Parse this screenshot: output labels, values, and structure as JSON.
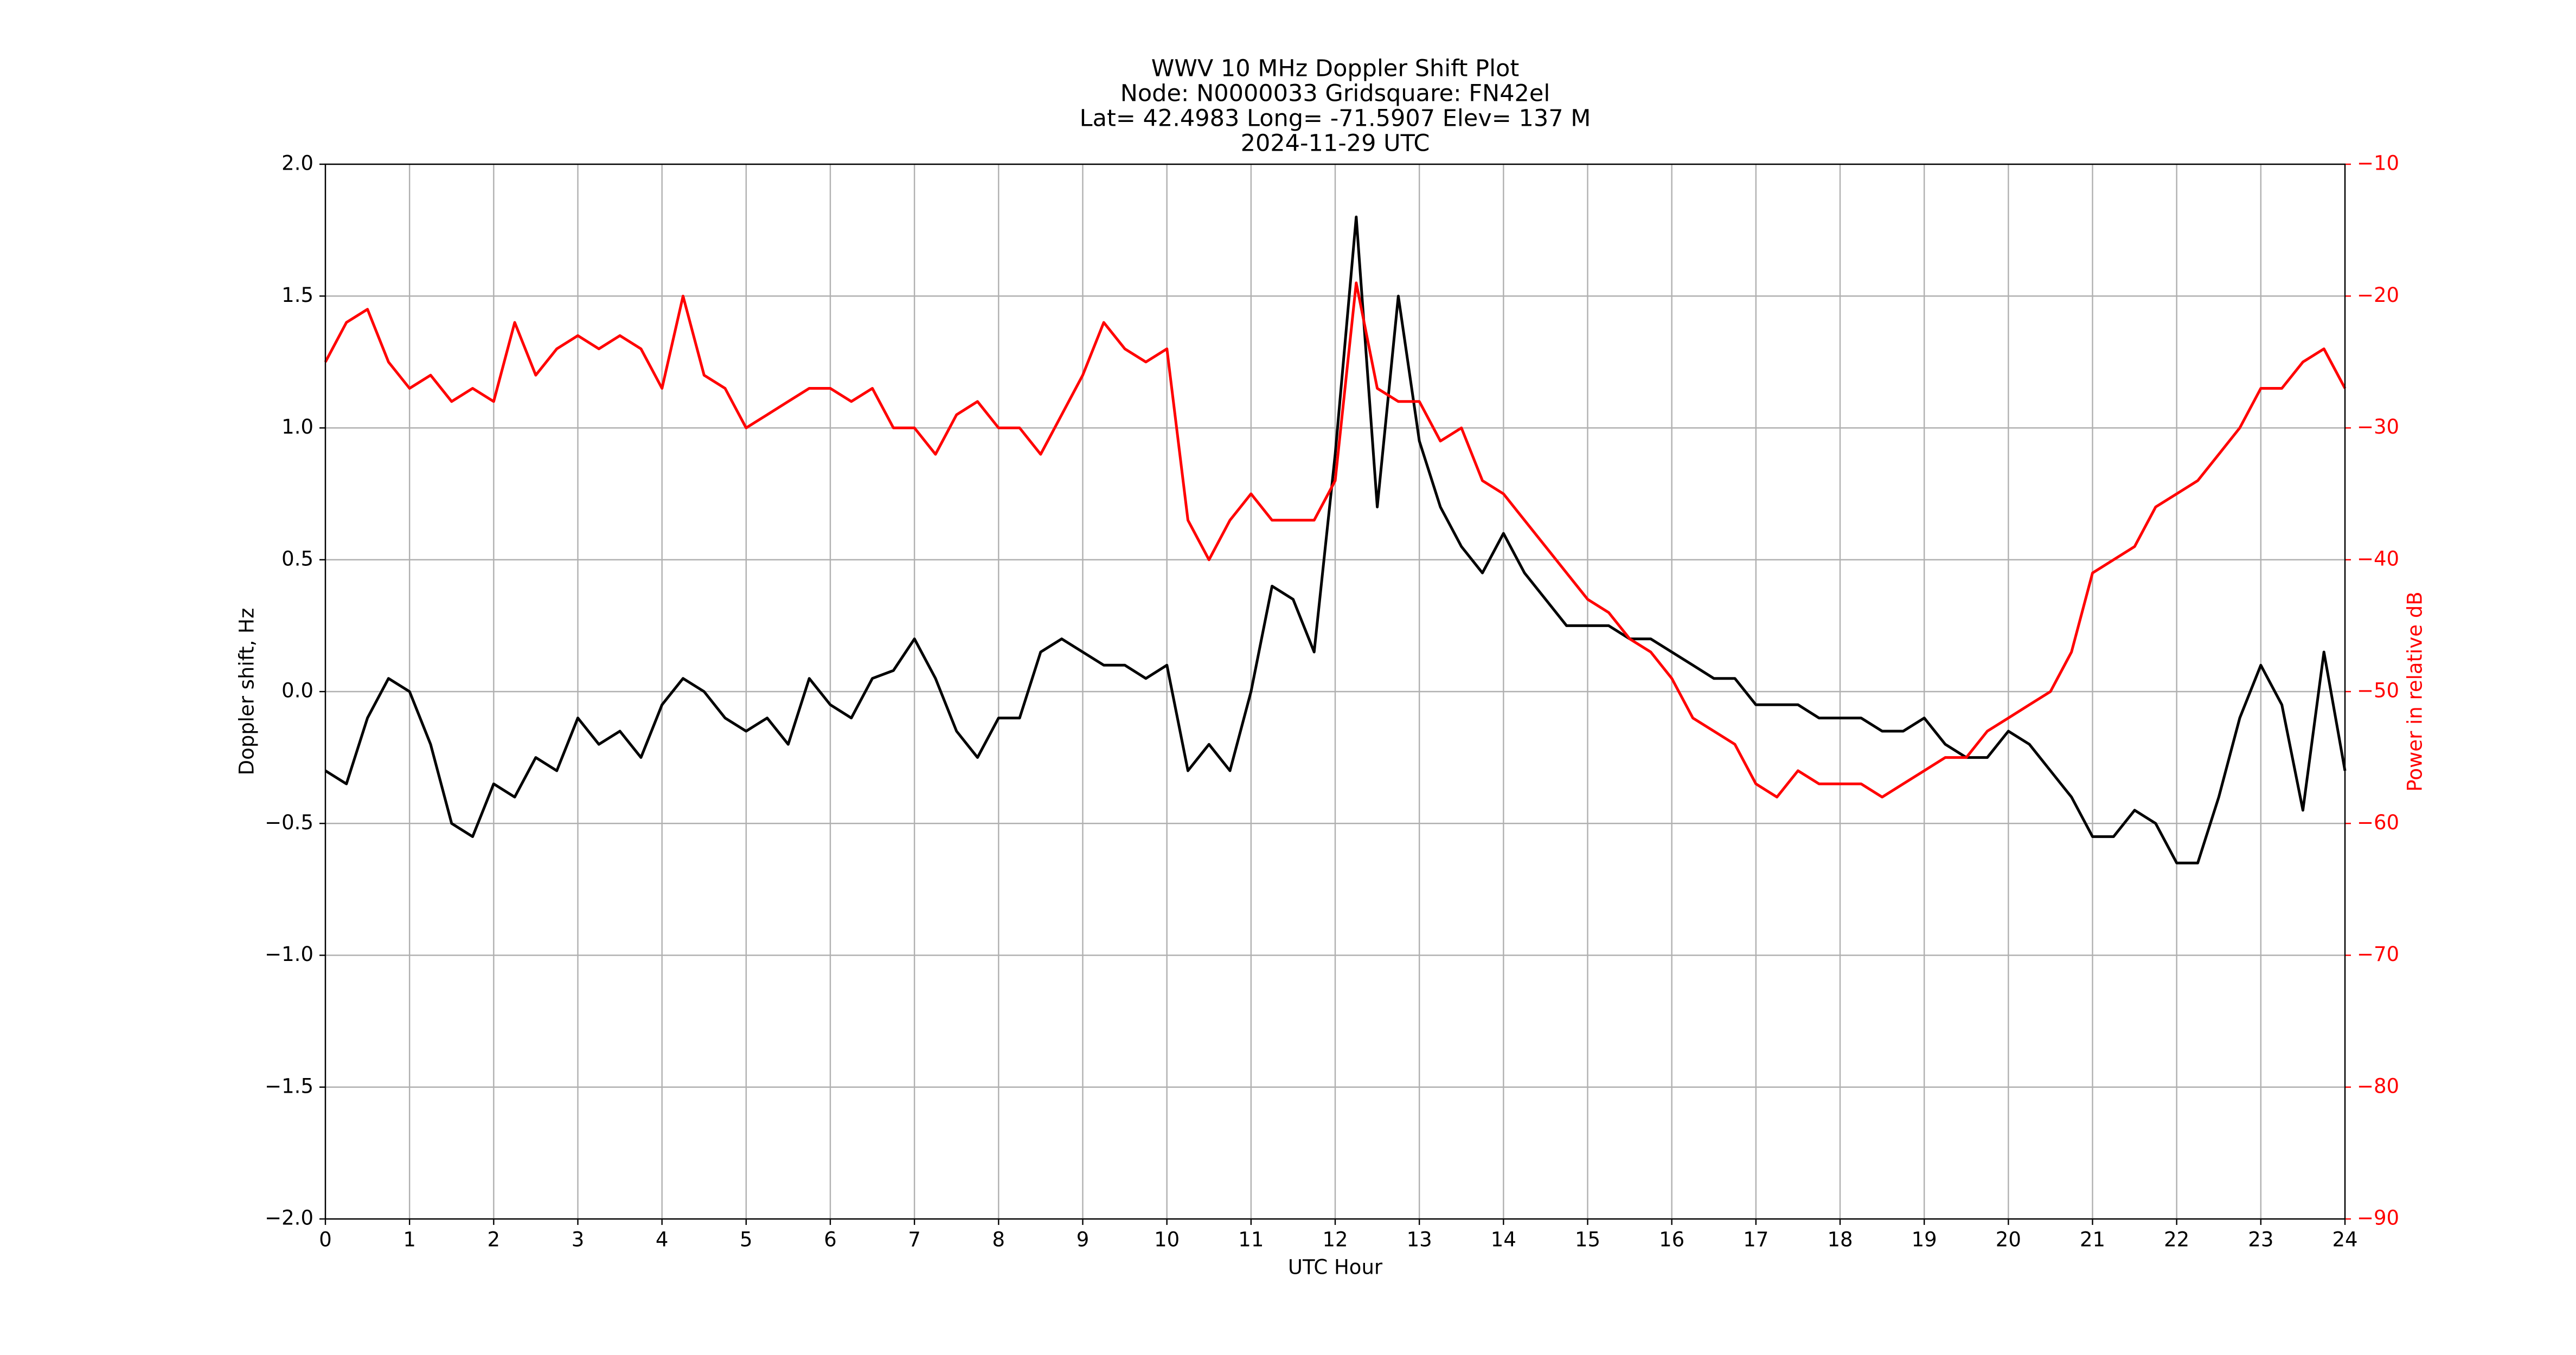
{
  "chart_data": {
    "type": "line",
    "title": "WWV 10 MHz Doppler Shift Plot",
    "subtitle": [
      "Node:  N0000033     Gridsquare:  FN42el",
      "Lat= 42.4983    Long= -71.5907    Elev= 137 M",
      "2024-11-29  UTC"
    ],
    "xlabel": "UTC Hour",
    "ylabel": "Doppler shift, Hz",
    "y2label": "Power in relative dB",
    "x": [
      0,
      0.25,
      0.5,
      0.75,
      1,
      1.25,
      1.5,
      1.75,
      2,
      2.25,
      2.5,
      2.75,
      3,
      3.25,
      3.5,
      3.75,
      4,
      4.25,
      4.5,
      4.75,
      5,
      5.25,
      5.5,
      5.75,
      6,
      6.25,
      6.5,
      6.75,
      7,
      7.25,
      7.5,
      7.75,
      8,
      8.25,
      8.5,
      8.75,
      9,
      9.25,
      9.5,
      9.75,
      10,
      10.25,
      10.5,
      10.75,
      11,
      11.25,
      11.5,
      11.75,
      12,
      12.25,
      12.5,
      12.75,
      13,
      13.25,
      13.5,
      13.75,
      14,
      14.25,
      14.5,
      14.75,
      15,
      15.25,
      15.5,
      15.75,
      16,
      16.25,
      16.5,
      16.75,
      17,
      17.25,
      17.5,
      17.75,
      18,
      18.25,
      18.5,
      18.75,
      19,
      19.25,
      19.5,
      19.75,
      20,
      20.25,
      20.5,
      20.75,
      21,
      21.25,
      21.5,
      21.75,
      22,
      22.25,
      22.5,
      22.75,
      23,
      23.25,
      23.5,
      23.75,
      24
    ],
    "series": [
      {
        "color": "#000000",
        "values": [
          -0.3,
          -0.35,
          -0.1,
          0.05,
          0,
          -0.2,
          -0.5,
          -0.55,
          -0.35,
          -0.4,
          -0.25,
          -0.3,
          -0.1,
          -0.2,
          -0.15,
          -0.25,
          -0.05,
          0.05,
          0,
          -0.1,
          -0.15,
          -0.1,
          -0.2,
          0.05,
          -0.05,
          -0.1,
          0.05,
          0.08,
          0.2,
          0.05,
          -0.15,
          -0.25,
          -0.1,
          -0.1,
          0.15,
          0.2,
          0.15,
          0.1,
          0.1,
          0.05,
          0.1,
          -0.3,
          -0.2,
          -0.3,
          0,
          0.4,
          0.35,
          0.15,
          0.9,
          1.8,
          0.7,
          1.5,
          0.95,
          0.7,
          0.55,
          0.45,
          0.6,
          0.45,
          0.35,
          0.25,
          0.25,
          0.25,
          0.2,
          0.2,
          0.15,
          0.1,
          0.05,
          0.05,
          -0.05,
          -0.05,
          -0.05,
          -0.1,
          -0.1,
          -0.1,
          -0.15,
          -0.15,
          -0.1,
          -0.2,
          -0.25,
          -0.25,
          -0.15,
          -0.2,
          -0.3,
          -0.4,
          -0.55,
          -0.55,
          -0.45,
          -0.5,
          -0.65,
          -0.65,
          -0.4,
          -0.1,
          0.1,
          -0.05,
          -0.45,
          0.15,
          -0.3
        ]
      },
      {
        "color": "#ff0000",
        "axis": "y2",
        "values": [
          -25,
          -22,
          -21,
          -25,
          -27,
          -26,
          -28,
          -27,
          -28,
          -22,
          -26,
          -24,
          -23,
          -24,
          -23,
          -24,
          -27,
          -20,
          -26,
          -27,
          -30,
          -29,
          -28,
          -27,
          -27,
          -28,
          -27,
          -30,
          -30,
          -32,
          -29,
          -28,
          -30,
          -30,
          -32,
          -29,
          -26,
          -22,
          -24,
          -25,
          -24,
          -37,
          -40,
          -37,
          -35,
          -37,
          -37,
          -37,
          -34,
          -19,
          -27,
          -28,
          -28,
          -31,
          -30,
          -34,
          -35,
          -37,
          -39,
          -41,
          -43,
          -44,
          -46,
          -47,
          -49,
          -52,
          -53,
          -54,
          -57,
          -58,
          -56,
          -57,
          -57,
          -57,
          -58,
          -57,
          -56,
          -55,
          -55,
          -53,
          -52,
          -51,
          -50,
          -47,
          -41,
          -40,
          -39,
          -36,
          -35,
          -34,
          -32,
          -30,
          -27,
          -27,
          -25,
          -24,
          -27
        ]
      }
    ],
    "xlim": [
      0,
      24
    ],
    "xticks": [
      0,
      1,
      2,
      3,
      4,
      5,
      6,
      7,
      8,
      9,
      10,
      11,
      12,
      13,
      14,
      15,
      16,
      17,
      18,
      19,
      20,
      21,
      22,
      23,
      24
    ],
    "ylim": [
      -2,
      2
    ],
    "yticks": [
      {
        "value": -2,
        "label": "−2.0"
      },
      {
        "value": -1.5,
        "label": "−1.5"
      },
      {
        "value": -1,
        "label": "−1.0"
      },
      {
        "value": -0.5,
        "label": "−0.5"
      },
      {
        "value": 0,
        "label": "0.0"
      },
      0.5,
      {
        "value": 1,
        "label": "1.0"
      },
      1.5,
      {
        "value": 2,
        "label": "2.0"
      }
    ],
    "y2lim": [
      -90,
      -10
    ],
    "y2ticks": [
      {
        "value": -90,
        "label": "−90"
      },
      {
        "value": -80,
        "label": "−80"
      },
      {
        "value": -70,
        "label": "−70"
      },
      {
        "value": -60,
        "label": "−60"
      },
      {
        "value": -50,
        "label": "−50"
      },
      {
        "value": -40,
        "label": "−40"
      },
      {
        "value": -30,
        "label": "−30"
      },
      {
        "value": -20,
        "label": "−20"
      },
      {
        "value": -10,
        "label": "−10"
      }
    ],
    "grid": true
  }
}
